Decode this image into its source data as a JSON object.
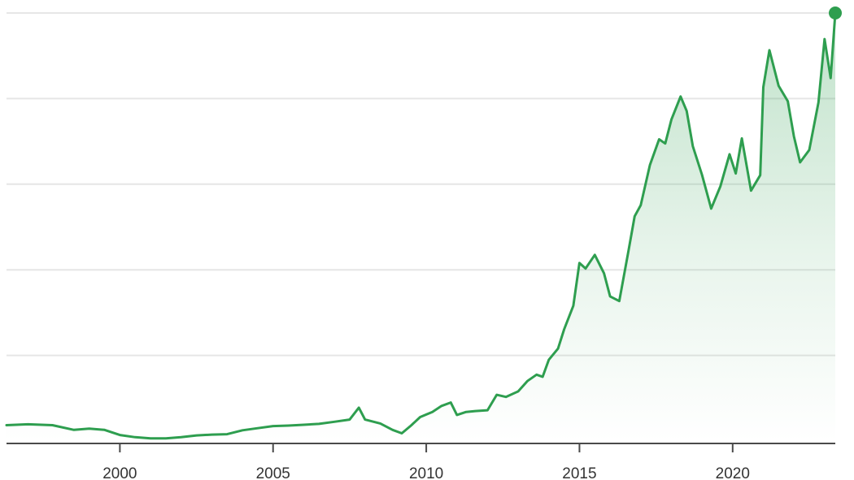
{
  "chart_data": {
    "type": "area",
    "title": "",
    "xlabel": "",
    "ylabel": "",
    "x_ticks": [
      "2000",
      "2005",
      "2010",
      "2015",
      "2020"
    ],
    "x_tick_values": [
      2000,
      2005,
      2010,
      2015,
      2020
    ],
    "xlim": [
      1996.3,
      2023.35
    ],
    "ylim": [
      0,
      100
    ],
    "grid": "horizontal",
    "legend": "none",
    "colors": {
      "line": "#2e9e4f",
      "fill": "#2e9e4f",
      "grid": "#e6e6e6",
      "axis": "#4a4a4a"
    },
    "series": [
      {
        "x": [
          1996.3,
          1997.0,
          1997.8,
          1998.5,
          1999.0,
          1999.5,
          2000.0,
          2000.5,
          2001.0,
          2001.5,
          2002.0,
          2002.5,
          2003.0,
          2003.5,
          2004.0,
          2004.5,
          2005.0,
          2005.5,
          2006.0,
          2006.5,
          2007.0,
          2007.5,
          2007.8,
          2008.0,
          2008.5,
          2008.9,
          2009.2,
          2009.5,
          2009.8,
          2010.2,
          2010.5,
          2010.8,
          2011.0,
          2011.3,
          2011.6,
          2012.0,
          2012.3,
          2012.6,
          2013.0,
          2013.3,
          2013.6,
          2013.8,
          2014.0,
          2014.3,
          2014.5,
          2014.8,
          2015.0,
          2015.2,
          2015.5,
          2015.8,
          2016.0,
          2016.3,
          2016.6,
          2016.8,
          2017.0,
          2017.3,
          2017.6,
          2017.8,
          2018.0,
          2018.3,
          2018.5,
          2018.7,
          2019.0,
          2019.3,
          2019.6,
          2019.9,
          2020.1,
          2020.3,
          2020.6,
          2020.9,
          2021.0,
          2021.2,
          2021.5,
          2021.8,
          2022.0,
          2022.2,
          2022.5,
          2022.8,
          2023.0,
          2023.2,
          2023.35
        ],
        "values": [
          3.7,
          3.9,
          3.7,
          2.6,
          2.9,
          2.6,
          1.4,
          0.9,
          0.6,
          0.6,
          0.9,
          1.3,
          1.5,
          1.6,
          2.5,
          3.0,
          3.5,
          3.6,
          3.8,
          4.0,
          4.5,
          5.0,
          7.8,
          5.0,
          4.1,
          2.6,
          1.8,
          3.6,
          5.6,
          6.8,
          8.2,
          9.0,
          6.1,
          6.8,
          7.0,
          7.2,
          10.8,
          10.3,
          11.6,
          14.0,
          15.5,
          15.0,
          19.0,
          21.6,
          26.1,
          31.6,
          41.6,
          40.3,
          43.5,
          39.2,
          33.8,
          32.7,
          44.4,
          52.5,
          55.1,
          64.5,
          70.5,
          69.5,
          75.1,
          80.5,
          77.1,
          68.9,
          62.2,
          54.3,
          59.5,
          67.0,
          62.5,
          70.7,
          58.5,
          62.1,
          82.7,
          91.3,
          83.0,
          79.4,
          71.2,
          65.1,
          68.0,
          79.1,
          93.9,
          84.8,
          100.0
        ]
      }
    ]
  }
}
